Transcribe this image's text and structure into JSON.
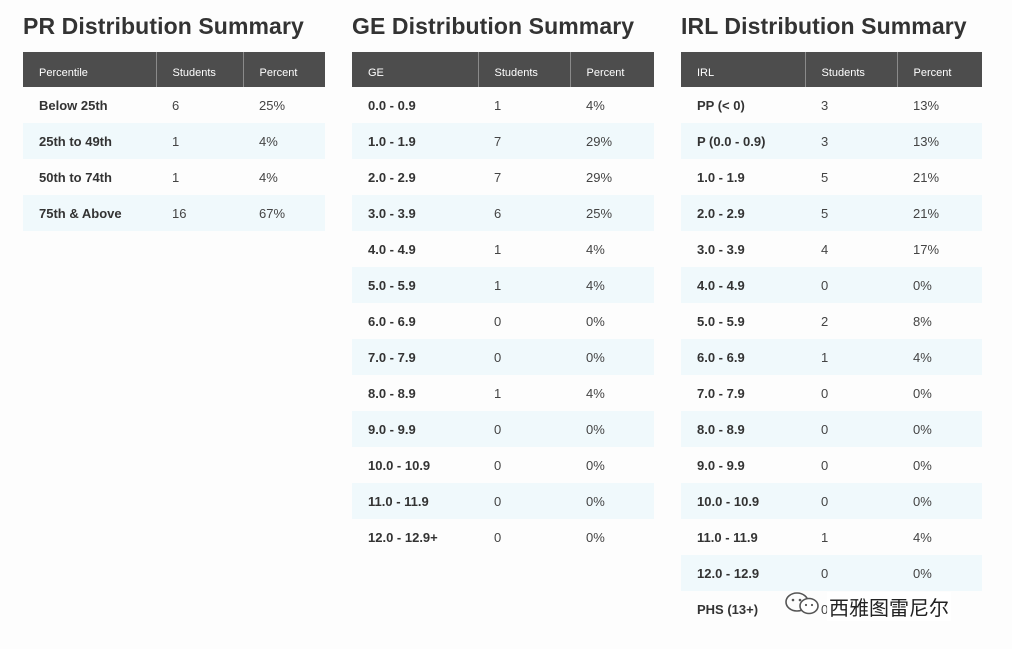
{
  "pr": {
    "title": "PR Distribution Summary",
    "headers": [
      "Percentile",
      "Students",
      "Percent"
    ],
    "rows": [
      [
        "Below 25th",
        "6",
        "25%"
      ],
      [
        "25th to 49th",
        "1",
        "4%"
      ],
      [
        "50th to 74th",
        "1",
        "4%"
      ],
      [
        "75th & Above",
        "16",
        "67%"
      ]
    ]
  },
  "ge": {
    "title": "GE Distribution Summary",
    "headers": [
      "GE",
      "Students",
      "Percent"
    ],
    "rows": [
      [
        "0.0 - 0.9",
        "1",
        "4%"
      ],
      [
        "1.0 - 1.9",
        "7",
        "29%"
      ],
      [
        "2.0 - 2.9",
        "7",
        "29%"
      ],
      [
        "3.0 - 3.9",
        "6",
        "25%"
      ],
      [
        "4.0 - 4.9",
        "1",
        "4%"
      ],
      [
        "5.0 - 5.9",
        "1",
        "4%"
      ],
      [
        "6.0 - 6.9",
        "0",
        "0%"
      ],
      [
        "7.0 - 7.9",
        "0",
        "0%"
      ],
      [
        "8.0 - 8.9",
        "1",
        "4%"
      ],
      [
        "9.0 - 9.9",
        "0",
        "0%"
      ],
      [
        "10.0 - 10.9",
        "0",
        "0%"
      ],
      [
        "11.0 - 11.9",
        "0",
        "0%"
      ],
      [
        "12.0 - 12.9+",
        "0",
        "0%"
      ]
    ]
  },
  "irl": {
    "title": "IRL Distribution Summary",
    "headers": [
      "IRL",
      "Students",
      "Percent"
    ],
    "rows": [
      [
        "PP (< 0)",
        "3",
        "13%"
      ],
      [
        "P (0.0 - 0.9)",
        "3",
        "13%"
      ],
      [
        "1.0 - 1.9",
        "5",
        "21%"
      ],
      [
        "2.0 - 2.9",
        "5",
        "21%"
      ],
      [
        "3.0 - 3.9",
        "4",
        "17%"
      ],
      [
        "4.0 - 4.9",
        "0",
        "0%"
      ],
      [
        "5.0 - 5.9",
        "2",
        "8%"
      ],
      [
        "6.0 - 6.9",
        "1",
        "4%"
      ],
      [
        "7.0 - 7.9",
        "0",
        "0%"
      ],
      [
        "8.0 - 8.9",
        "0",
        "0%"
      ],
      [
        "9.0 - 9.9",
        "0",
        "0%"
      ],
      [
        "10.0 - 10.9",
        "0",
        "0%"
      ],
      [
        "11.0 - 11.9",
        "1",
        "4%"
      ],
      [
        "12.0 - 12.9",
        "0",
        "0%"
      ],
      [
        "PHS (13+)",
        "0",
        ""
      ]
    ]
  },
  "watermark": {
    "text": "西雅图雷尼尔",
    "icon": "wechat-icon"
  }
}
